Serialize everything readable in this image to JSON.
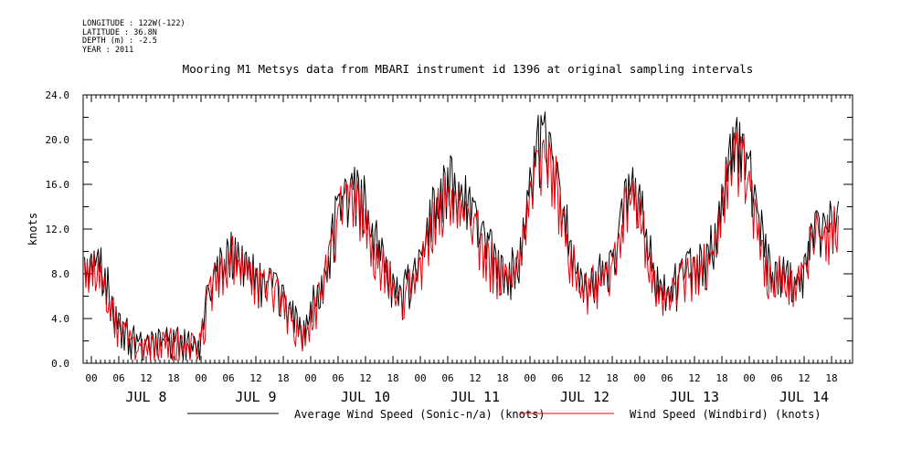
{
  "meta": {
    "longitude": "LONGITUDE : 122W(-122)",
    "latitude": "LATITUDE : 36.8N",
    "depth": "DEPTH (m) : -2.5",
    "year": "YEAR : 2011"
  },
  "chart_data": {
    "type": "line",
    "title": "Mooring M1 Metsys data from MBARI instrument id 1396 at original sampling intervals",
    "ylabel": "knots",
    "xlabel": "",
    "ylim": [
      0,
      24
    ],
    "y_ticks": [
      "0.0",
      "4.0",
      "8.0",
      "12.0",
      "16.0",
      "20.0",
      "24.0"
    ],
    "x_hour_labels": [
      "00",
      "06",
      "12",
      "18"
    ],
    "x_days": [
      "JUL 8",
      "JUL 9",
      "JUL 10",
      "JUL 11",
      "JUL 12",
      "JUL 13",
      "JUL 14"
    ],
    "x_unit": "hours since JUL 8 00:00",
    "grid": false,
    "legend": "bottom",
    "series": [
      {
        "name": "Average Wind Speed (Sonic-n/a) (knots)",
        "color": "#000000",
        "points": [
          [
            -1.5,
            9.5
          ],
          [
            0,
            9.8
          ],
          [
            1.5,
            10.2
          ],
          [
            3,
            8.5
          ],
          [
            4.5,
            6.0
          ],
          [
            6,
            4.5
          ],
          [
            7.5,
            3.5
          ],
          [
            9,
            2.8
          ],
          [
            10.5,
            2.2
          ],
          [
            12,
            2.0
          ],
          [
            13.5,
            2.5
          ],
          [
            15,
            2.8
          ],
          [
            16.5,
            3.2
          ],
          [
            18,
            3.0
          ],
          [
            19.5,
            2.5
          ],
          [
            21,
            2.2
          ],
          [
            22.5,
            2.4
          ],
          [
            24,
            2.6
          ],
          [
            25.5,
            7.0
          ],
          [
            27,
            9.0
          ],
          [
            28.5,
            9.8
          ],
          [
            30,
            10.5
          ],
          [
            31.5,
            11.2
          ],
          [
            33,
            10.5
          ],
          [
            34.5,
            9.5
          ],
          [
            36,
            8.5
          ],
          [
            37.5,
            8.0
          ],
          [
            39,
            8.5
          ],
          [
            40.5,
            8.0
          ],
          [
            42,
            7.0
          ],
          [
            43.5,
            5.5
          ],
          [
            45,
            4.5
          ],
          [
            46.5,
            3.8
          ],
          [
            48,
            5.5
          ],
          [
            49.5,
            7.0
          ],
          [
            51,
            8.5
          ],
          [
            52.5,
            12.0
          ],
          [
            54,
            15.0
          ],
          [
            55.5,
            16.5
          ],
          [
            57,
            17.0
          ],
          [
            58.5,
            16.5
          ],
          [
            60,
            15.0
          ],
          [
            61.5,
            12.5
          ],
          [
            63,
            11.0
          ],
          [
            64.5,
            9.5
          ],
          [
            66,
            8.0
          ],
          [
            67.5,
            7.0
          ],
          [
            69,
            7.5
          ],
          [
            70.5,
            8.5
          ],
          [
            72,
            10.0
          ],
          [
            73.5,
            13.0
          ],
          [
            75,
            15.5
          ],
          [
            76.5,
            16.5
          ],
          [
            78,
            17.5
          ],
          [
            79.5,
            17.0
          ],
          [
            81,
            16.0
          ],
          [
            82.5,
            15.0
          ],
          [
            84,
            14.5
          ],
          [
            85.5,
            12.5
          ],
          [
            87,
            11.0
          ],
          [
            88.5,
            10.0
          ],
          [
            90,
            9.5
          ],
          [
            91.5,
            9.0
          ],
          [
            93,
            9.5
          ],
          [
            94.5,
            13.0
          ],
          [
            96,
            17.5
          ],
          [
            97.5,
            20.5
          ],
          [
            99,
            21.5
          ],
          [
            100.5,
            20.5
          ],
          [
            102,
            18.0
          ],
          [
            103.5,
            14.0
          ],
          [
            105,
            11.0
          ],
          [
            106.5,
            9.0
          ],
          [
            108,
            8.0
          ],
          [
            109.5,
            8.5
          ],
          [
            111,
            8.5
          ],
          [
            112.5,
            9.0
          ],
          [
            114,
            9.5
          ],
          [
            115.5,
            12.5
          ],
          [
            117,
            16.5
          ],
          [
            118.5,
            17.5
          ],
          [
            120,
            16.0
          ],
          [
            121.5,
            12.0
          ],
          [
            123,
            9.0
          ],
          [
            124.5,
            7.5
          ],
          [
            126,
            6.5
          ],
          [
            127.5,
            7.5
          ],
          [
            129,
            9.0
          ],
          [
            130.5,
            10.0
          ],
          [
            132,
            9.5
          ],
          [
            133.5,
            10.0
          ],
          [
            135,
            10.5
          ],
          [
            136.5,
            12.5
          ],
          [
            138,
            16.0
          ],
          [
            139.5,
            19.0
          ],
          [
            141,
            21.0
          ],
          [
            142.5,
            20.5
          ],
          [
            144,
            18.5
          ],
          [
            145.5,
            15.0
          ],
          [
            147,
            12.0
          ],
          [
            148.5,
            9.5
          ],
          [
            150,
            9.0
          ],
          [
            151.5,
            9.5
          ],
          [
            153,
            9.0
          ],
          [
            154.5,
            8.0
          ],
          [
            156,
            9.5
          ],
          [
            157.5,
            12.5
          ],
          [
            159,
            13.5
          ],
          [
            160.5,
            13.0
          ],
          [
            162,
            13.5
          ],
          [
            163.5,
            14.5
          ]
        ]
      },
      {
        "name": "Wind Speed (Windbird) (knots)",
        "color": "#e8000b",
        "points": [
          [
            -1.5,
            9.0
          ],
          [
            0,
            9.3
          ],
          [
            1.5,
            9.6
          ],
          [
            3,
            7.8
          ],
          [
            4.5,
            5.5
          ],
          [
            6,
            4.0
          ],
          [
            7.5,
            3.0
          ],
          [
            9,
            2.3
          ],
          [
            10.5,
            1.8
          ],
          [
            12,
            1.6
          ],
          [
            13.5,
            2.0
          ],
          [
            15,
            2.3
          ],
          [
            16.5,
            2.7
          ],
          [
            18,
            2.5
          ],
          [
            19.5,
            2.0
          ],
          [
            21,
            1.8
          ],
          [
            22.5,
            2.0
          ],
          [
            24,
            2.2
          ],
          [
            25.5,
            6.8
          ],
          [
            27,
            8.8
          ],
          [
            28.5,
            9.5
          ],
          [
            30,
            10.0
          ],
          [
            31.5,
            10.6
          ],
          [
            33,
            10.0
          ],
          [
            34.5,
            9.0
          ],
          [
            36,
            8.0
          ],
          [
            37.5,
            7.5
          ],
          [
            39,
            8.0
          ],
          [
            40.5,
            7.4
          ],
          [
            42,
            6.4
          ],
          [
            43.5,
            5.0
          ],
          [
            45,
            4.0
          ],
          [
            46.5,
            3.3
          ],
          [
            48,
            5.0
          ],
          [
            49.5,
            6.6
          ],
          [
            51,
            8.0
          ],
          [
            52.5,
            11.2
          ],
          [
            54,
            14.0
          ],
          [
            55.5,
            15.2
          ],
          [
            57,
            15.6
          ],
          [
            58.5,
            15.0
          ],
          [
            60,
            13.8
          ],
          [
            61.5,
            11.5
          ],
          [
            63,
            10.2
          ],
          [
            64.5,
            8.8
          ],
          [
            66,
            7.4
          ],
          [
            67.5,
            6.5
          ],
          [
            69,
            7.0
          ],
          [
            70.5,
            8.0
          ],
          [
            72,
            9.5
          ],
          [
            73.5,
            12.2
          ],
          [
            75,
            14.4
          ],
          [
            76.5,
            15.2
          ],
          [
            78,
            15.8
          ],
          [
            79.5,
            15.4
          ],
          [
            81,
            14.6
          ],
          [
            82.5,
            13.8
          ],
          [
            84,
            13.4
          ],
          [
            85.5,
            11.6
          ],
          [
            87,
            10.2
          ],
          [
            88.5,
            9.3
          ],
          [
            90,
            8.8
          ],
          [
            91.5,
            8.4
          ],
          [
            93,
            8.9
          ],
          [
            94.5,
            12.2
          ],
          [
            96,
            16.3
          ],
          [
            97.5,
            19.0
          ],
          [
            99,
            20.0
          ],
          [
            100.5,
            19.1
          ],
          [
            102,
            16.8
          ],
          [
            103.5,
            13.0
          ],
          [
            105,
            10.2
          ],
          [
            106.5,
            8.3
          ],
          [
            108,
            7.4
          ],
          [
            109.5,
            7.9
          ],
          [
            111,
            8.0
          ],
          [
            112.5,
            8.5
          ],
          [
            114,
            9.0
          ],
          [
            115.5,
            11.6
          ],
          [
            117,
            15.2
          ],
          [
            118.5,
            16.2
          ],
          [
            120,
            14.8
          ],
          [
            121.5,
            11.0
          ],
          [
            123,
            8.3
          ],
          [
            124.5,
            6.9
          ],
          [
            126,
            6.0
          ],
          [
            127.5,
            7.0
          ],
          [
            129,
            8.5
          ],
          [
            130.5,
            9.4
          ],
          [
            132,
            8.9
          ],
          [
            133.5,
            9.4
          ],
          [
            135,
            9.8
          ],
          [
            136.5,
            11.6
          ],
          [
            138,
            14.8
          ],
          [
            139.5,
            17.6
          ],
          [
            141,
            19.6
          ],
          [
            142.5,
            19.2
          ],
          [
            144,
            17.2
          ],
          [
            145.5,
            13.8
          ],
          [
            147,
            11.0
          ],
          [
            148.5,
            8.8
          ],
          [
            150,
            8.4
          ],
          [
            151.5,
            8.9
          ],
          [
            153,
            8.4
          ],
          [
            154.5,
            7.5
          ],
          [
            156,
            9.0
          ],
          [
            157.5,
            11.8
          ],
          [
            159,
            12.6
          ],
          [
            160.5,
            12.2
          ],
          [
            162,
            12.6
          ],
          [
            163.5,
            13.2
          ]
        ]
      }
    ]
  }
}
